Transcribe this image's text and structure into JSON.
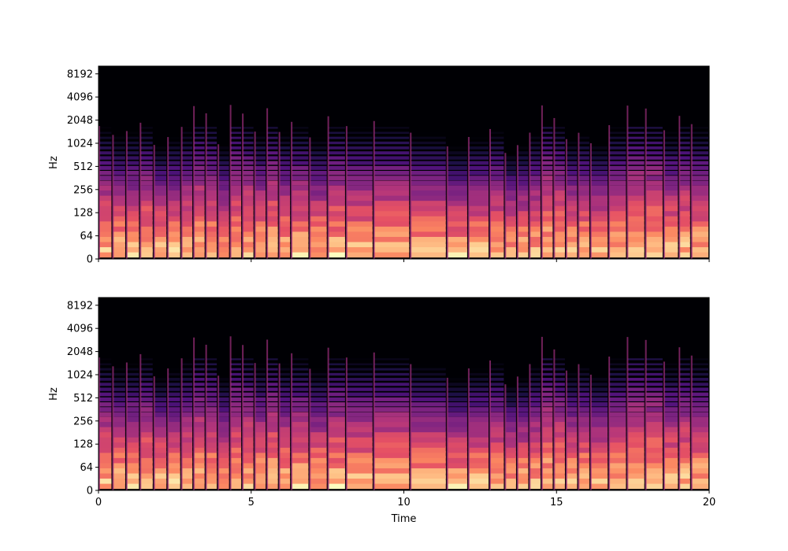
{
  "chart_data": [
    {
      "type": "heatmap",
      "title": "",
      "xlabel": "",
      "ylabel": "Hz",
      "xlim": [
        0,
        20
      ],
      "yscale": "log2 (frequency)",
      "y_ticks": [
        "0",
        "64",
        "128",
        "256",
        "512",
        "1024",
        "2048",
        "4096",
        "8192"
      ],
      "x_ticks": [],
      "colormap": "magma",
      "grid": false
    },
    {
      "type": "heatmap",
      "title": "",
      "xlabel": "Time",
      "ylabel": "Hz",
      "xlim": [
        0,
        20
      ],
      "yscale": "log2 (frequency)",
      "y_ticks": [
        "0",
        "64",
        "128",
        "256",
        "512",
        "1024",
        "2048",
        "4096",
        "8192"
      ],
      "x_ticks": [
        "0",
        "5",
        "10",
        "15",
        "20"
      ],
      "colormap": "magma",
      "grid": false
    }
  ],
  "colors": {
    "background": "#000004",
    "low": "#3b0f70",
    "mid": "#b73779",
    "high": "#fc8961",
    "peak": "#fcfdbf"
  }
}
